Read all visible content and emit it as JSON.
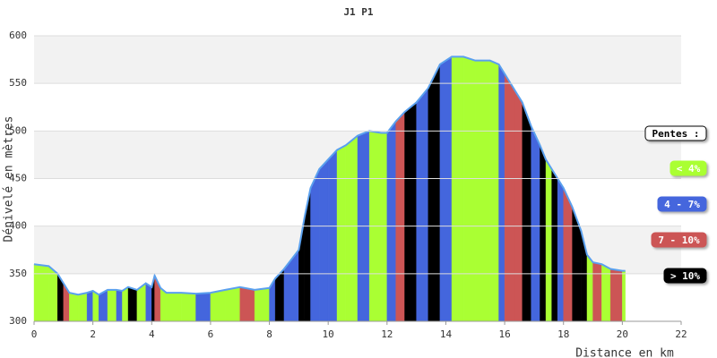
{
  "chart_data": {
    "type": "area",
    "title": "J1 P1",
    "x_label": "Distance en km",
    "y_label": "Dénivelé en mètres",
    "xlim": [
      0,
      22
    ],
    "ylim": [
      300,
      600
    ],
    "xticks": [
      0,
      2,
      4,
      6,
      8,
      10,
      12,
      14,
      16,
      18,
      20,
      22
    ],
    "yticks": [
      300,
      350,
      400,
      450,
      500,
      550,
      600
    ],
    "bands": true,
    "line_color": "#5aa0ee",
    "x": [
      0,
      0.5,
      0.8,
      1.0,
      1.2,
      1.5,
      1.8,
      2.0,
      2.2,
      2.5,
      2.8,
      3.0,
      3.2,
      3.5,
      3.8,
      4.0,
      4.1,
      4.3,
      4.5,
      5.0,
      5.5,
      6.0,
      6.5,
      7.0,
      7.5,
      8.0,
      8.2,
      8.5,
      9.0,
      9.2,
      9.4,
      9.7,
      10.0,
      10.3,
      10.6,
      11.0,
      11.4,
      11.8,
      12.0,
      12.3,
      12.6,
      13.0,
      13.4,
      13.8,
      14.2,
      14.6,
      15.0,
      15.5,
      15.8,
      16.0,
      16.3,
      16.6,
      16.9,
      17.2,
      17.4,
      17.6,
      17.8,
      18.0,
      18.3,
      18.6,
      18.8,
      19.0,
      19.3,
      19.6,
      20.0,
      20.1
    ],
    "values": [
      360,
      358,
      350,
      340,
      330,
      328,
      330,
      332,
      328,
      333,
      333,
      332,
      336,
      333,
      340,
      336,
      348,
      335,
      330,
      330,
      329,
      330,
      333,
      336,
      333,
      335,
      345,
      355,
      375,
      410,
      440,
      460,
      470,
      480,
      485,
      495,
      500,
      498,
      498,
      510,
      520,
      530,
      545,
      570,
      578,
      578,
      574,
      574,
      570,
      560,
      545,
      530,
      505,
      485,
      470,
      460,
      450,
      440,
      420,
      395,
      370,
      362,
      360,
      355,
      353,
      353
    ],
    "slope_classes": [
      0,
      0,
      3,
      2,
      0,
      0,
      1,
      0,
      1,
      0,
      1,
      0,
      3,
      0,
      1,
      3,
      2,
      0,
      0,
      0,
      1,
      0,
      0,
      2,
      0,
      1,
      3,
      1,
      3,
      3,
      1,
      1,
      1,
      0,
      0,
      1,
      0,
      0,
      1,
      2,
      3,
      1,
      3,
      1,
      0,
      0,
      0,
      0,
      1,
      2,
      2,
      3,
      1,
      3,
      0,
      3,
      1,
      2,
      3,
      3,
      0,
      2,
      0,
      2,
      0
    ],
    "legend": {
      "title": "Pentes :",
      "position": "right",
      "items": [
        {
          "label": "< 4%",
          "color": "#aaff33"
        },
        {
          "label": "4 - 7%",
          "color": "#4466dd"
        },
        {
          "label": "7 - 10%",
          "color": "#cc5555"
        },
        {
          "label": "> 10%",
          "color": "#000000"
        }
      ]
    }
  }
}
